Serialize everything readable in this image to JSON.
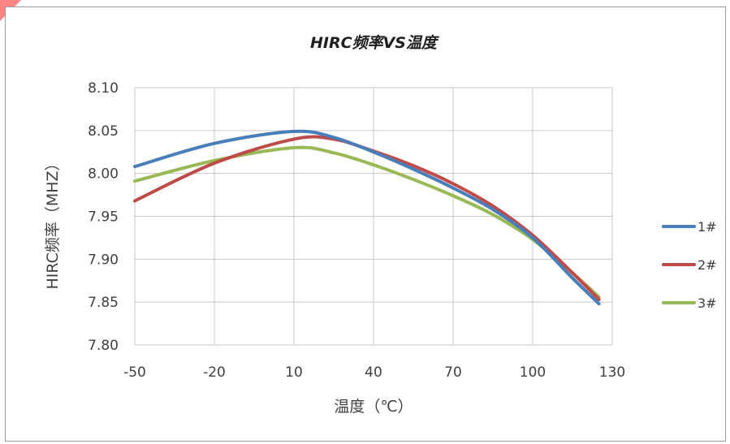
{
  "colors": {
    "series_1": "#4a7ebb",
    "series_2": "#be4b48",
    "series_3": "#98b954",
    "grid": "#c9c9c9",
    "axis_text": "#404040",
    "title": "#1f1f1f",
    "frame": "#9a9a9a",
    "corner_mark": "#ff5a5a"
  },
  "chart_data": {
    "type": "line",
    "title": "HIRC频率VS温度",
    "xlabel": "温度（℃）",
    "ylabel": "HIRC频率（MHZ）",
    "xlim": [
      -50,
      130
    ],
    "ylim": [
      7.8,
      8.1
    ],
    "x_ticks": [
      -50,
      -20,
      10,
      40,
      70,
      100,
      130
    ],
    "y_ticks": [
      7.8,
      7.85,
      7.9,
      7.95,
      8.0,
      8.05,
      8.1
    ],
    "y_tick_labels": [
      "7.80",
      "7.85",
      "7.90",
      "7.95",
      "8.00",
      "8.05",
      "8.10"
    ],
    "grid": true,
    "legend_position": "right",
    "series": [
      {
        "name": "1#",
        "x": [
          -50,
          -20,
          10,
          25,
          40,
          55,
          70,
          85,
          100,
          115,
          125
        ],
        "y": [
          8.008,
          8.035,
          8.049,
          8.042,
          8.025,
          8.005,
          7.983,
          7.958,
          7.925,
          7.878,
          7.848
        ]
      },
      {
        "name": "2#",
        "x": [
          -50,
          -20,
          10,
          25,
          40,
          55,
          70,
          85,
          100,
          115,
          125
        ],
        "y": [
          7.968,
          8.012,
          8.04,
          8.04,
          8.026,
          8.009,
          7.988,
          7.962,
          7.928,
          7.884,
          7.853
        ]
      },
      {
        "name": "3#",
        "x": [
          -50,
          -20,
          10,
          25,
          40,
          55,
          70,
          85,
          100,
          115,
          125
        ],
        "y": [
          7.991,
          8.015,
          8.03,
          8.024,
          8.01,
          7.993,
          7.974,
          7.952,
          7.923,
          7.884,
          7.856
        ]
      }
    ]
  }
}
